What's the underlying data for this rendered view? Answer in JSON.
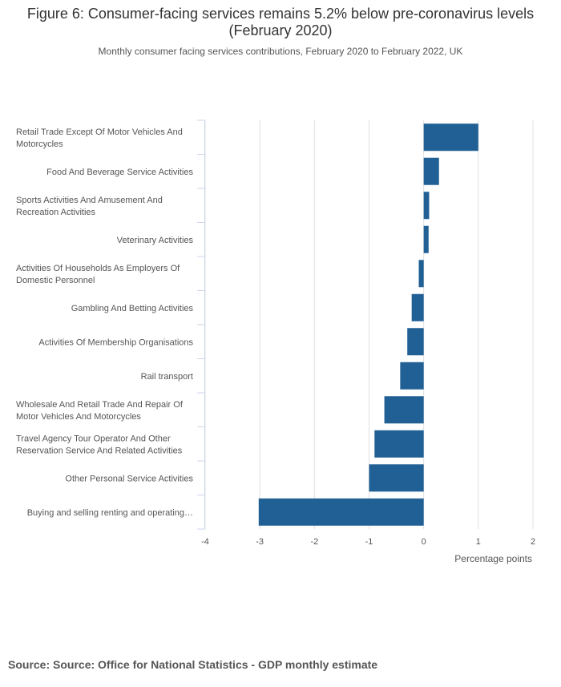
{
  "title": "Figure 6: Consumer-facing services remains 5.2% below pre-coronavirus levels (February 2020)",
  "subtitle": "Monthly consumer facing services contributions, February 2020 to February 2022, UK",
  "source": "Source: Source: Office for National Statistics - GDP monthly estimate",
  "colors": {
    "bar": "#206095",
    "grid": "#e0e0e0",
    "axis": "#ccd6eb"
  },
  "chart_data": {
    "type": "bar",
    "orientation": "horizontal",
    "categories": [
      [
        "Retail Trade Except Of Motor Vehicles And",
        "Motorcycles"
      ],
      [
        "Food And Beverage Service Activities"
      ],
      [
        "Sports Activities And Amusement And",
        "Recreation Activities"
      ],
      [
        "Veterinary Activities"
      ],
      [
        "Activities Of Households As Employers Of",
        "Domestic Personnel"
      ],
      [
        "Gambling And Betting Activities"
      ],
      [
        "Activities Of Membership Organisations"
      ],
      [
        "Rail transport"
      ],
      [
        "Wholesale And Retail Trade And Repair Of",
        "Motor Vehicles And Motorcycles"
      ],
      [
        "Travel Agency Tour Operator And Other",
        "Reservation Service And Related Activities"
      ],
      [
        "Other Personal Service Activities"
      ],
      [
        "Buying and selling renting and operating…"
      ]
    ],
    "values": [
      1.0,
      0.28,
      0.1,
      0.09,
      -0.09,
      -0.22,
      -0.3,
      -0.43,
      -0.72,
      -0.9,
      -1.0,
      -3.02
    ],
    "xlabel": "Percentage points",
    "xlim": [
      -4,
      2
    ],
    "xticks": [
      "-4",
      "-3",
      "-2",
      "-1",
      "0",
      "1",
      "2"
    ],
    "grid": true
  }
}
